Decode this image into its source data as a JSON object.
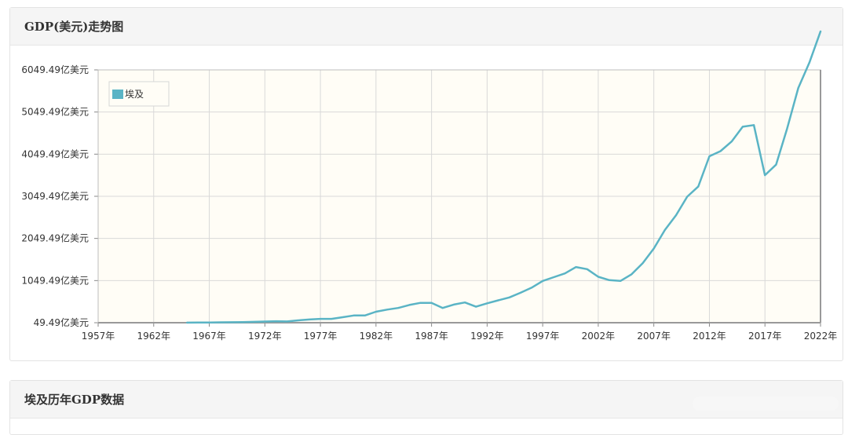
{
  "panels": {
    "chart_title": "GDP(美元)走势图",
    "table_title": "埃及历年GDP数据"
  },
  "colors": {
    "line": "#5ab4c5",
    "plot_bg": "#fffdf6",
    "grid": "#d9d9d9",
    "axis": "#888888"
  },
  "chart_data": {
    "type": "line",
    "title": "GDP(美元)走势图",
    "xlabel": "",
    "ylabel": "",
    "xlim": [
      1957,
      2022
    ],
    "ylim": [
      49.49,
      6049.49
    ],
    "y_ticks": [
      {
        "value": 49.49,
        "label": "49.49亿美元"
      },
      {
        "value": 1049.49,
        "label": "1049.49亿美元"
      },
      {
        "value": 2049.49,
        "label": "2049.49亿美元"
      },
      {
        "value": 3049.49,
        "label": "3049.49亿美元"
      },
      {
        "value": 4049.49,
        "label": "4049.49亿美元"
      },
      {
        "value": 5049.49,
        "label": "5049.49亿美元"
      },
      {
        "value": 6049.49,
        "label": "6049.49亿美元"
      }
    ],
    "x_ticks": [
      {
        "value": 1957,
        "label": "1957年"
      },
      {
        "value": 1962,
        "label": "1962年"
      },
      {
        "value": 1967,
        "label": "1967年"
      },
      {
        "value": 1972,
        "label": "1972年"
      },
      {
        "value": 1977,
        "label": "1977年"
      },
      {
        "value": 1982,
        "label": "1982年"
      },
      {
        "value": 1987,
        "label": "1987年"
      },
      {
        "value": 1992,
        "label": "1992年"
      },
      {
        "value": 1997,
        "label": "1997年"
      },
      {
        "value": 2002,
        "label": "2002年"
      },
      {
        "value": 2007,
        "label": "2007年"
      },
      {
        "value": 2012,
        "label": "2012年"
      },
      {
        "value": 2017,
        "label": "2017年"
      },
      {
        "value": 2022,
        "label": "2022年"
      }
    ],
    "grid": true,
    "legend": {
      "position": "top-left",
      "entries": [
        "埃及"
      ]
    },
    "series": [
      {
        "name": "埃及",
        "x": [
          1965,
          1966,
          1967,
          1968,
          1969,
          1970,
          1971,
          1972,
          1973,
          1974,
          1975,
          1976,
          1977,
          1978,
          1979,
          1980,
          1981,
          1982,
          1983,
          1984,
          1985,
          1986,
          1987,
          1988,
          1989,
          1990,
          1991,
          1992,
          1993,
          1994,
          1995,
          1996,
          1997,
          1998,
          1999,
          2000,
          2001,
          2002,
          2003,
          2004,
          2005,
          2006,
          2007,
          2008,
          2009,
          2010,
          2011,
          2012,
          2013,
          2014,
          2015,
          2016,
          2017,
          2018,
          2019,
          2020,
          2021,
          2022
        ],
        "values": [
          51,
          53,
          55,
          58,
          60,
          65,
          70,
          78,
          85,
          80,
          105,
          125,
          140,
          140,
          180,
          220,
          220,
          310,
          360,
          400,
          470,
          520,
          520,
          400,
          480,
          530,
          430,
          510,
          580,
          650,
          760,
          880,
          1040,
          1130,
          1220,
          1370,
          1320,
          1140,
          1060,
          1040,
          1200,
          1460,
          1810,
          2250,
          2600,
          3040,
          3280,
          4000,
          4120,
          4350,
          4700,
          4740,
          3550,
          3800,
          4660,
          5620,
          6220,
          6960
        ]
      }
    ]
  }
}
